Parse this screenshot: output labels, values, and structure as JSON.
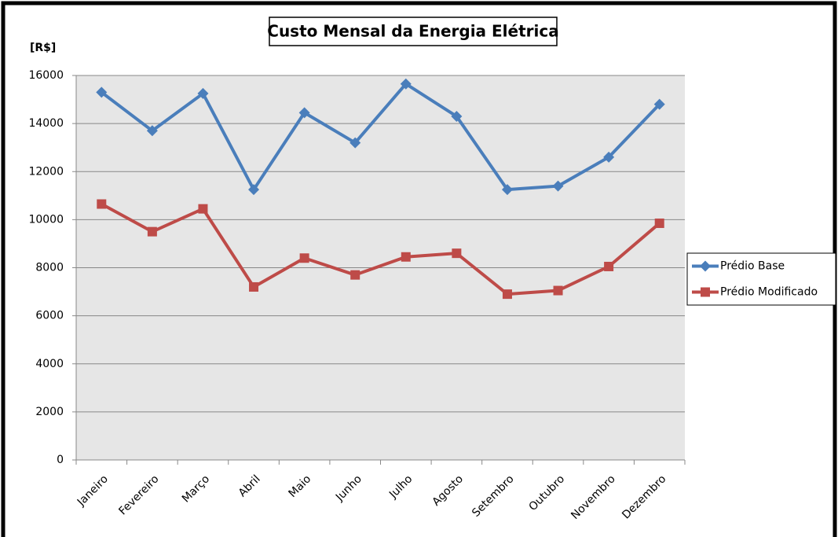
{
  "chart_data": {
    "type": "line",
    "title": "Custo Mensal da Energia Elétrica",
    "y_label": "[R$]",
    "categories": [
      "Janeiro",
      "Fevereiro",
      "Março",
      "Abril",
      "Maio",
      "Junho",
      "Julho",
      "Agosto",
      "Setembro",
      "Outubro",
      "Novembro",
      "Dezembro"
    ],
    "series": [
      {
        "name": "Prédio Base",
        "color": "#4a7ebb",
        "marker": "diamond",
        "values": [
          15300,
          13700,
          15250,
          11250,
          14450,
          13200,
          15650,
          14300,
          11250,
          11400,
          12600,
          14800
        ]
      },
      {
        "name": "Prédio Modificado",
        "color": "#be4b48",
        "marker": "square",
        "values": [
          10650,
          9500,
          10450,
          7200,
          8400,
          7700,
          8450,
          8600,
          6900,
          7050,
          8050,
          9850
        ]
      }
    ],
    "ylim": [
      0,
      16000
    ],
    "yticks": [
      0,
      2000,
      4000,
      6000,
      8000,
      10000,
      12000,
      14000,
      16000
    ],
    "grid": true,
    "legend": "right"
  }
}
